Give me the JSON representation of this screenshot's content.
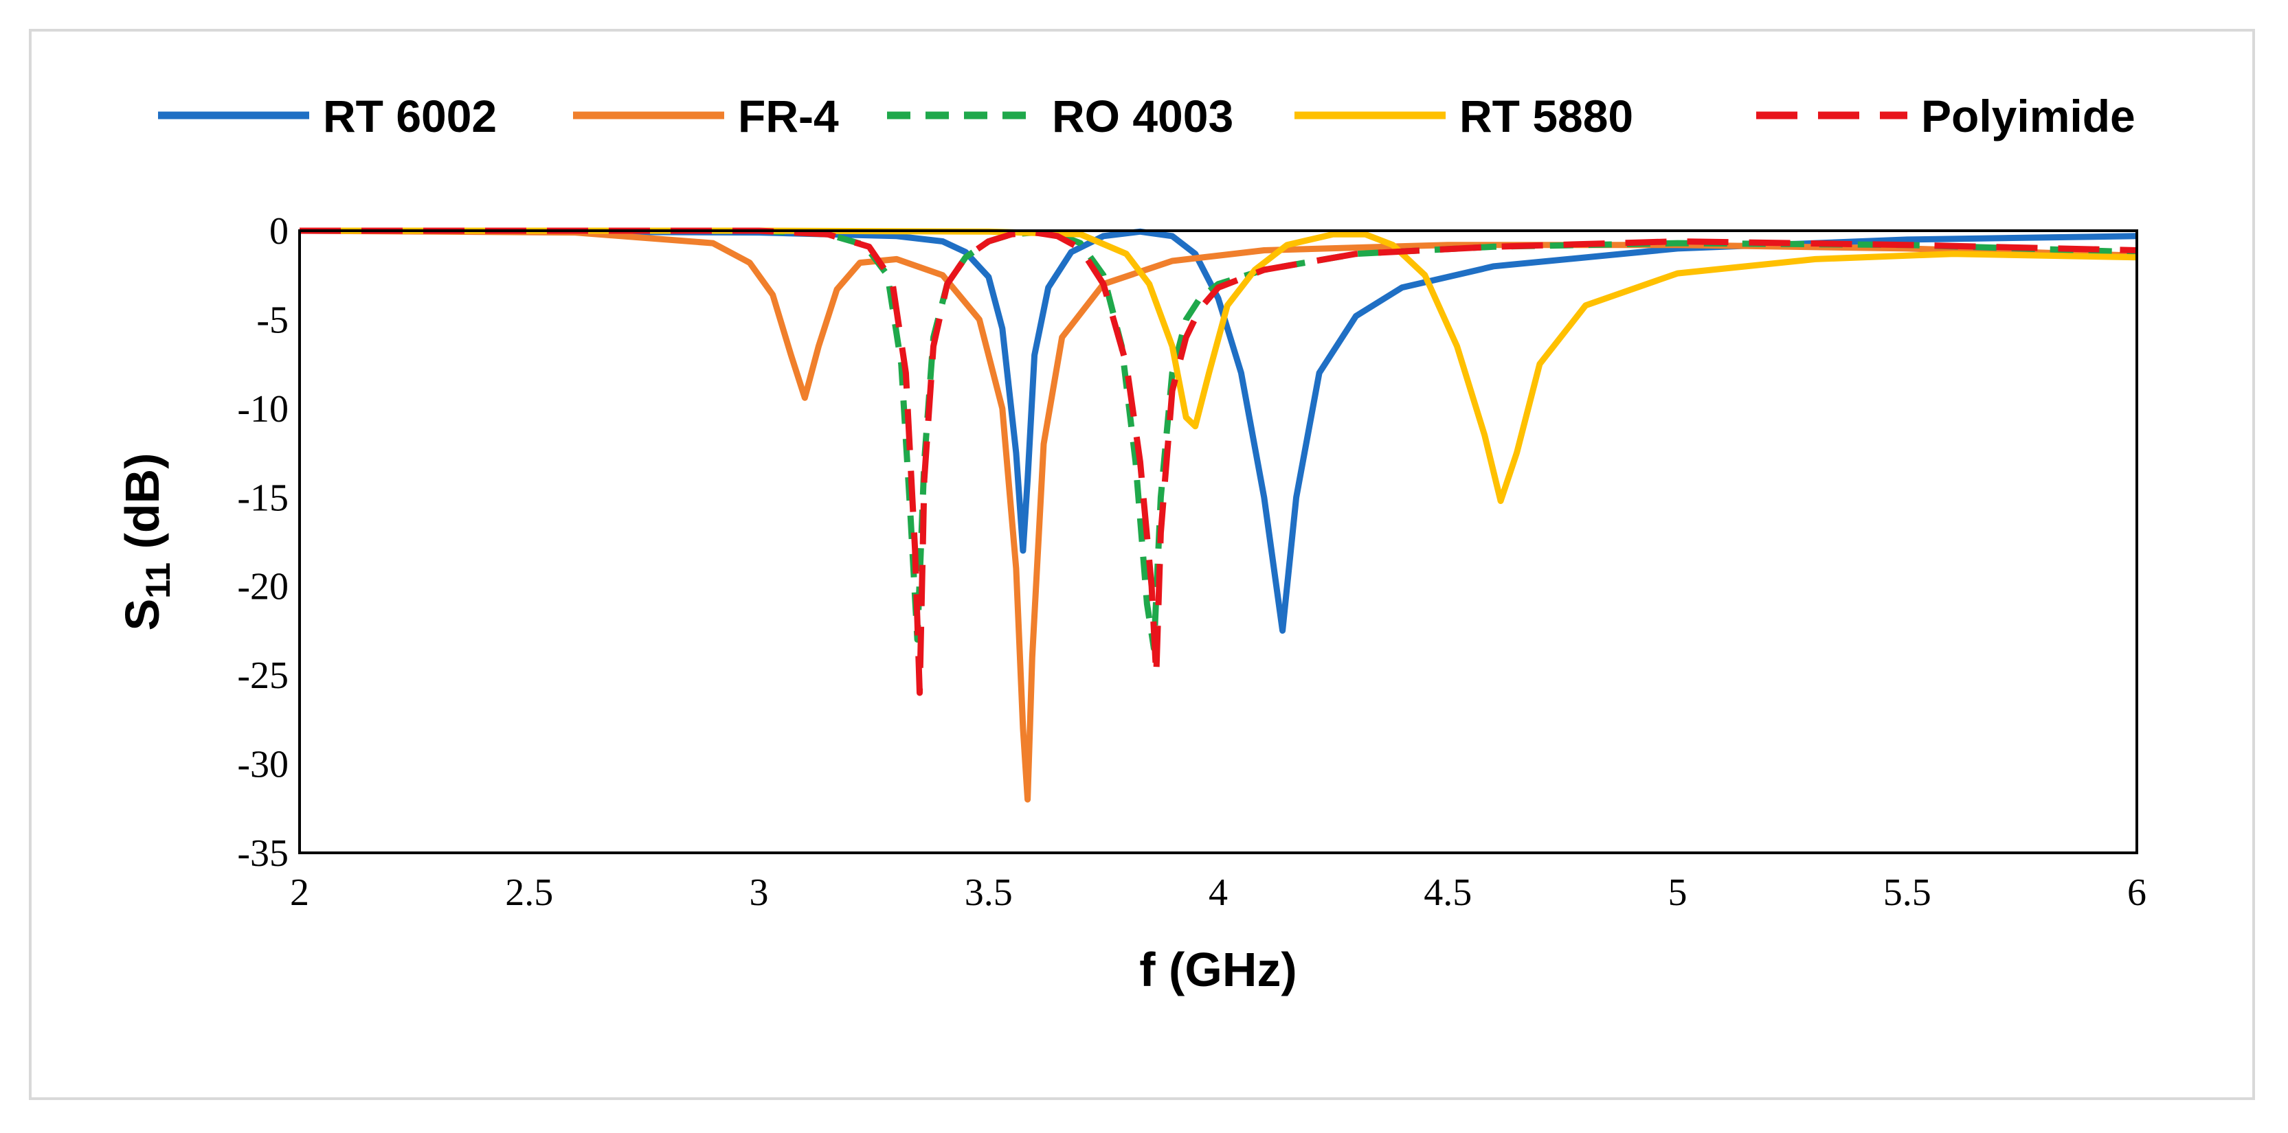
{
  "chart_data": {
    "type": "line",
    "title": "",
    "xlabel": "f (GHz)",
    "ylabel": "S11 (dB)",
    "ylabel_main": "S",
    "ylabel_sub": "11",
    "ylabel_unit": " (dB)",
    "xlim": [
      2,
      6
    ],
    "ylim": [
      -35,
      0
    ],
    "x_ticks": [
      2,
      2.5,
      3,
      3.5,
      4,
      4.5,
      5,
      5.5,
      6
    ],
    "x_tick_labels": [
      "2",
      "2.5",
      "3",
      "3.5",
      "4",
      "4.5",
      "5",
      "5.5",
      "6"
    ],
    "y_ticks": [
      0,
      -5,
      -10,
      -15,
      -20,
      -25,
      -30,
      -35
    ],
    "y_tick_labels": [
      "0",
      "-5",
      "-10",
      "-15",
      "-20",
      "-25",
      "-30",
      "-35"
    ],
    "grid": false,
    "legend_position": "top",
    "series": [
      {
        "name": "RT 6002",
        "color": "#1f6fc4",
        "dash": "solid",
        "x": [
          2.0,
          3.0,
          3.3,
          3.4,
          3.45,
          3.5,
          3.53,
          3.56,
          3.575,
          3.585,
          3.6,
          3.63,
          3.68,
          3.75,
          3.83,
          3.9,
          3.95,
          4.0,
          4.05,
          4.1,
          4.14,
          4.17,
          4.22,
          4.3,
          4.4,
          4.6,
          5.0,
          5.5,
          6.0
        ],
        "y": [
          0,
          -0.1,
          -0.3,
          -0.6,
          -1.2,
          -2.6,
          -5.5,
          -12.5,
          -18,
          -14,
          -7,
          -3.2,
          -1.2,
          -0.3,
          -0.05,
          -0.3,
          -1.3,
          -3.8,
          -8,
          -15,
          -22.5,
          -15,
          -8,
          -4.8,
          -3.2,
          -2,
          -1,
          -0.5,
          -0.3
        ]
      },
      {
        "name": "FR-4",
        "color": "#f07f2c",
        "dash": "solid",
        "x": [
          2.0,
          2.6,
          2.9,
          2.98,
          3.03,
          3.07,
          3.1,
          3.13,
          3.17,
          3.22,
          3.3,
          3.4,
          3.48,
          3.53,
          3.56,
          3.575,
          3.585,
          3.595,
          3.62,
          3.66,
          3.75,
          3.9,
          4.1,
          4.5,
          5.0,
          5.5,
          6.0
        ],
        "y": [
          0,
          -0.1,
          -0.7,
          -1.8,
          -3.6,
          -7,
          -9.4,
          -6.5,
          -3.3,
          -1.8,
          -1.6,
          -2.5,
          -5,
          -10,
          -19,
          -28,
          -32,
          -24,
          -12,
          -6,
          -3,
          -1.7,
          -1.1,
          -0.8,
          -0.8,
          -1.0,
          -1.4
        ]
      },
      {
        "name": "RO 4003",
        "color": "#1fa84b",
        "dash": "medium",
        "x": [
          2.0,
          3.0,
          3.15,
          3.23,
          3.28,
          3.31,
          3.33,
          3.345,
          3.36,
          3.38,
          3.41,
          3.45,
          3.5,
          3.55,
          3.6,
          3.65,
          3.7,
          3.75,
          3.79,
          3.82,
          3.845,
          3.86,
          3.875,
          3.9,
          3.93,
          3.96,
          4.0,
          4.1,
          4.3,
          4.6,
          5.0,
          5.5,
          6.0
        ],
        "y": [
          0,
          0,
          -0.2,
          -0.8,
          -2.5,
          -7.5,
          -16,
          -23,
          -13,
          -6,
          -3,
          -1.5,
          -0.6,
          -0.2,
          -0.1,
          -0.2,
          -0.7,
          -2.5,
          -6.5,
          -13,
          -21,
          -23.5,
          -15,
          -8,
          -5,
          -3.8,
          -3,
          -2.2,
          -1.3,
          -0.9,
          -0.7,
          -0.8,
          -1.2
        ]
      },
      {
        "name": "RT 5880",
        "color": "#ffc000",
        "dash": "solid",
        "x": [
          2.0,
          3.0,
          3.5,
          3.7,
          3.8,
          3.85,
          3.9,
          3.93,
          3.95,
          3.98,
          4.02,
          4.08,
          4.15,
          4.25,
          4.32,
          4.38,
          4.45,
          4.52,
          4.58,
          4.615,
          4.65,
          4.7,
          4.8,
          5.0,
          5.3,
          5.6,
          6.0
        ],
        "y": [
          0,
          0,
          -0.05,
          -0.2,
          -1.3,
          -3,
          -6.5,
          -10.5,
          -11,
          -8,
          -4.2,
          -2.2,
          -0.8,
          -0.2,
          -0.2,
          -0.8,
          -2.5,
          -6.5,
          -11.5,
          -15.2,
          -12.5,
          -7.5,
          -4.2,
          -2.4,
          -1.6,
          -1.3,
          -1.5
        ]
      },
      {
        "name": "Polyimide",
        "color": "#e8141b",
        "dash": "long",
        "x": [
          2.0,
          3.0,
          3.15,
          3.24,
          3.29,
          3.32,
          3.34,
          3.35,
          3.36,
          3.38,
          3.41,
          3.45,
          3.5,
          3.55,
          3.6,
          3.65,
          3.7,
          3.75,
          3.8,
          3.83,
          3.855,
          3.865,
          3.875,
          3.9,
          3.93,
          3.96,
          4.0,
          4.1,
          4.3,
          4.6,
          5.0,
          5.5,
          6.0
        ],
        "y": [
          0,
          0,
          -0.2,
          -0.9,
          -2.8,
          -8,
          -18,
          -26,
          -14,
          -6.5,
          -3,
          -1.5,
          -0.6,
          -0.2,
          -0.1,
          -0.3,
          -1,
          -3,
          -7.5,
          -13,
          -20,
          -25,
          -17,
          -9,
          -6,
          -4.4,
          -3.2,
          -2.2,
          -1.3,
          -0.9,
          -0.6,
          -0.8,
          -1.1
        ]
      }
    ]
  }
}
